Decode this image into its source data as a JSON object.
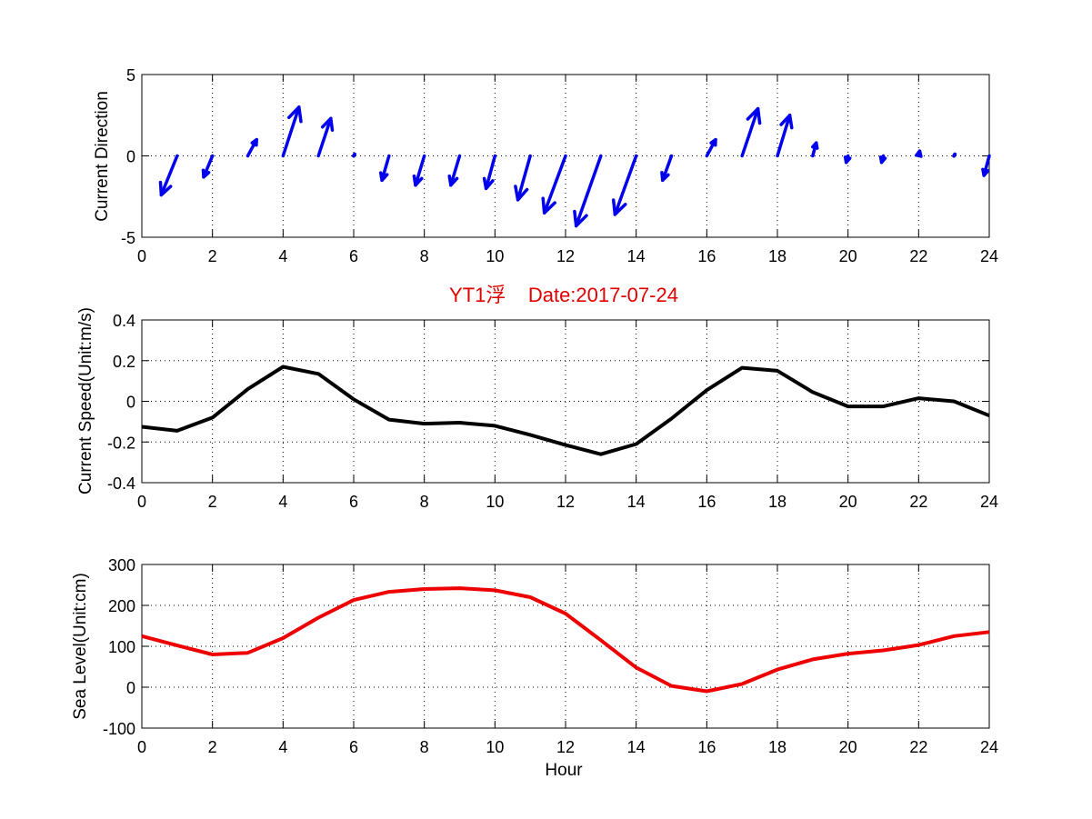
{
  "figure": {
    "title": "YT1浮    Date:2017-07-24",
    "xlabel": "Hour"
  },
  "chart_data": [
    {
      "type": "quiver",
      "ylabel": "Current Direction",
      "xlim": [
        0,
        24
      ],
      "ylim": [
        -5,
        5
      ],
      "xticks": [
        0,
        2,
        4,
        6,
        8,
        10,
        12,
        14,
        16,
        18,
        20,
        22,
        24
      ],
      "yticks": [
        5,
        0,
        -5
      ],
      "grid": true,
      "color": "#0000ee",
      "x": [
        1,
        2,
        3,
        4,
        5,
        6,
        7,
        8,
        9,
        10,
        11,
        12,
        13,
        14,
        15,
        16,
        17,
        18,
        19,
        20,
        21,
        22,
        23,
        24
      ],
      "u": [
        -0.45,
        -0.25,
        0.25,
        0.45,
        0.35,
        0.0,
        -0.2,
        -0.25,
        -0.25,
        -0.25,
        -0.35,
        -0.6,
        -0.7,
        -0.6,
        -0.25,
        0.25,
        0.45,
        0.35,
        0.1,
        -0.05,
        -0.05,
        0.03,
        0.0,
        -0.15
      ],
      "v": [
        -2.4,
        -1.3,
        1.0,
        3.0,
        2.3,
        0.1,
        -1.5,
        -1.8,
        -1.8,
        -2.0,
        -2.7,
        -3.5,
        -4.3,
        -3.6,
        -1.5,
        1.0,
        2.9,
        2.5,
        0.8,
        -0.4,
        -0.4,
        0.3,
        0.1,
        -1.2
      ]
    },
    {
      "type": "line",
      "ylabel": "Current Speed(Unit:m/s)",
      "xlim": [
        0,
        24
      ],
      "ylim": [
        -0.4,
        0.4
      ],
      "xticks": [
        0,
        2,
        4,
        6,
        8,
        10,
        12,
        14,
        16,
        18,
        20,
        22,
        24
      ],
      "yticks": [
        0.4,
        0.2,
        0,
        -0.2,
        -0.4
      ],
      "grid": true,
      "color": "#000000",
      "x": [
        0,
        1,
        2,
        3,
        4,
        5,
        6,
        7,
        8,
        9,
        10,
        11,
        12,
        13,
        14,
        15,
        16,
        17,
        18,
        19,
        20,
        21,
        22,
        23,
        24
      ],
      "values": [
        -0.125,
        -0.145,
        -0.08,
        0.06,
        0.17,
        0.135,
        0.01,
        -0.09,
        -0.11,
        -0.105,
        -0.12,
        -0.165,
        -0.215,
        -0.26,
        -0.21,
        -0.085,
        0.055,
        0.165,
        0.15,
        0.045,
        -0.025,
        -0.025,
        0.015,
        0.0,
        -0.07
      ]
    },
    {
      "type": "line",
      "ylabel": "Sea Level(Unit:cm)",
      "xlim": [
        0,
        24
      ],
      "ylim": [
        -100,
        300
      ],
      "xticks": [
        0,
        2,
        4,
        6,
        8,
        10,
        12,
        14,
        16,
        18,
        20,
        22,
        24
      ],
      "yticks": [
        300,
        200,
        100,
        0,
        -100
      ],
      "grid": true,
      "color": "#ee0000",
      "x": [
        0,
        1,
        2,
        3,
        4,
        5,
        6,
        7,
        8,
        9,
        10,
        11,
        12,
        13,
        14,
        15,
        16,
        17,
        18,
        19,
        20,
        21,
        22,
        23,
        24
      ],
      "values": [
        125,
        102,
        80,
        84,
        120,
        170,
        213,
        233,
        240,
        242,
        237,
        220,
        180,
        115,
        48,
        3,
        -10,
        8,
        43,
        68,
        82,
        90,
        103,
        125,
        135
      ]
    }
  ]
}
